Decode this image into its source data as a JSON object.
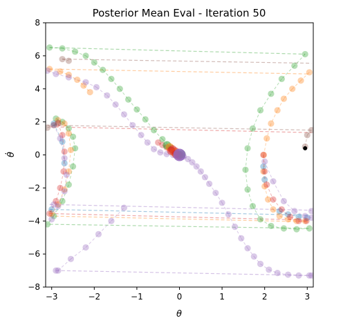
{
  "chart_data": {
    "type": "scatter",
    "title": "Posterior Mean Eval - Iteration 50",
    "xlabel": "θ",
    "ylabel": "θ̇",
    "xlim": [
      -3.14159,
      3.14159
    ],
    "ylim": [
      -8,
      8
    ],
    "xticks": [
      -3,
      -2,
      -1,
      0,
      1,
      2,
      3
    ],
    "yticks": [
      -8,
      -6,
      -4,
      -2,
      0,
      2,
      4,
      6,
      8
    ],
    "grid": false,
    "colors": {
      "blue": "#1f77b4",
      "orange": "#ff7f0e",
      "green": "#2ca02c",
      "red": "#d62728",
      "purple": "#9467bd",
      "brown": "#8c564b",
      "black": "#000000"
    },
    "series": [
      {
        "color": "green",
        "x": [
          -3.05,
          -2.75,
          -2.45,
          -2.2,
          -2.0,
          -1.8,
          -1.6,
          -1.4,
          -1.2,
          -1.0,
          -0.8,
          -0.6,
          -0.4,
          -0.2,
          0.0,
          -2.9,
          -2.75,
          -2.6,
          -2.5,
          -2.45,
          -2.5,
          -2.6,
          -2.75,
          -2.95,
          -3.1,
          2.95,
          2.7,
          2.4,
          2.15,
          1.9,
          1.72,
          1.6,
          1.55,
          1.6,
          1.72,
          1.9,
          2.15,
          2.45,
          2.75,
          3.05
        ],
        "y": [
          6.5,
          6.45,
          6.25,
          6.0,
          5.6,
          5.15,
          4.6,
          4.0,
          3.35,
          2.75,
          2.15,
          1.5,
          0.95,
          0.45,
          0.05,
          2.2,
          2.0,
          1.6,
          1.1,
          0.4,
          -0.7,
          -1.8,
          -2.8,
          -3.7,
          -4.2,
          6.1,
          5.4,
          4.6,
          3.7,
          2.7,
          1.6,
          0.4,
          -0.9,
          -2.1,
          -3.1,
          -3.9,
          -4.3,
          -4.45,
          -4.5,
          -4.45
        ]
      },
      {
        "color": "orange",
        "x": [
          -3.05,
          -2.8,
          -2.6,
          -2.4,
          -2.25,
          -2.1,
          -2.85,
          -2.7,
          -2.6,
          -2.55,
          -2.6,
          -2.7,
          -2.85,
          -3.0,
          3.05,
          2.85,
          2.65,
          2.45,
          2.3,
          2.15,
          2.05,
          1.98,
          1.97,
          2.0,
          2.08,
          2.2,
          2.35,
          2.55,
          2.75,
          2.95
        ],
        "y": [
          5.2,
          5.05,
          4.85,
          4.55,
          4.2,
          3.8,
          2.1,
          1.9,
          1.3,
          0.3,
          -1.0,
          -2.1,
          -3.0,
          -3.55,
          5.0,
          4.5,
          4.0,
          3.4,
          2.7,
          1.9,
          1.0,
          0.0,
          -1.0,
          -1.9,
          -2.7,
          -3.3,
          -3.7,
          -3.9,
          -4.0,
          -4.0
        ]
      },
      {
        "color": "blue",
        "x": [
          -2.95,
          -2.75,
          -2.7,
          -3.0,
          1.97,
          2.0,
          2.35,
          2.55,
          2.8,
          3.0
        ],
        "y": [
          1.9,
          0.8,
          -0.5,
          -3.3,
          -0.7,
          -1.5,
          -3.4,
          -3.6,
          -3.75,
          -3.8
        ]
      },
      {
        "color": "red",
        "x": [
          -2.85,
          -2.75,
          -2.7,
          -2.72,
          -2.8,
          -2.9,
          -3.05,
          1.97,
          2.0,
          2.05,
          2.2,
          2.4,
          2.6,
          2.8,
          2.98,
          -0.5,
          -0.4,
          -0.3,
          -0.2,
          -0.1,
          0.0,
          0.05
        ],
        "y": [
          1.9,
          1.2,
          0.2,
          -1.0,
          -2.0,
          -2.8,
          -3.55,
          0.0,
          -1.0,
          -1.8,
          -2.7,
          -3.3,
          -3.75,
          -4.0,
          -4.0,
          0.75,
          0.6,
          0.45,
          0.3,
          0.15,
          0.05,
          0.0
        ]
      },
      {
        "color": "purple",
        "x": [
          -3.1,
          -2.9,
          -2.6,
          -2.2,
          -1.95,
          -1.7,
          -1.5,
          -1.3,
          -1.1,
          -0.9,
          -0.75,
          -0.6,
          -0.45,
          -0.3,
          -0.15,
          0.0,
          0.1,
          0.2,
          0.3,
          0.4,
          0.5,
          0.6,
          0.7,
          0.85,
          1.0,
          1.15,
          1.3,
          1.45,
          1.6,
          1.75,
          1.9,
          2.1,
          2.3,
          2.55,
          2.8,
          3.05,
          -2.95,
          -2.8,
          -2.7,
          -2.65,
          -2.7,
          -2.85,
          -3.0,
          -2.85,
          -2.55,
          -2.2,
          -1.9,
          -1.6,
          -1.3,
          2.0,
          2.2,
          2.45,
          2.7,
          2.95,
          3.1,
          -2.95,
          3.1,
          -2.9,
          3.1
        ],
        "y": [
          5.1,
          4.9,
          4.7,
          4.4,
          4.1,
          3.6,
          3.05,
          2.45,
          1.8,
          1.2,
          0.75,
          0.35,
          0.15,
          0.05,
          0.0,
          0.0,
          -0.1,
          -0.25,
          -0.45,
          -0.7,
          -1.0,
          -1.35,
          -1.75,
          -2.3,
          -2.9,
          -3.6,
          -4.35,
          -5.05,
          -5.65,
          -6.15,
          -6.6,
          -6.95,
          -7.15,
          -7.25,
          -7.3,
          -7.3,
          1.8,
          1.0,
          -0.2,
          -1.2,
          -2.2,
          -3.1,
          -3.9,
          -7.0,
          -6.3,
          -5.6,
          -4.8,
          -4.0,
          -3.2,
          -0.4,
          -1.6,
          -2.8,
          -3.4,
          -3.7,
          -3.8,
          -3.0,
          -3.4,
          -7.0,
          -7.3
        ]
      },
      {
        "color": "brown",
        "x": [
          -3.1,
          -2.95,
          -2.85,
          2.95,
          3.0,
          3.1,
          -2.75,
          -2.6
        ],
        "y": [
          1.65,
          1.8,
          1.95,
          0.5,
          1.2,
          1.5,
          5.8,
          5.7
        ]
      },
      {
        "color": "black",
        "x": [
          2.95
        ],
        "y": [
          0.4
        ]
      }
    ],
    "dashed_lines": [
      {
        "color": "green",
        "x": [
          -3.05,
          2.95
        ],
        "y": [
          6.5,
          6.1
        ]
      },
      {
        "color": "orange",
        "x": [
          -3.05,
          3.05
        ],
        "y": [
          5.2,
          4.9
        ]
      },
      {
        "color": "brown",
        "x": [
          -2.75,
          3.1
        ],
        "y": [
          5.8,
          5.55
        ]
      },
      {
        "color": "brown",
        "x": [
          -3.1,
          3.1
        ],
        "y": [
          1.8,
          1.5
        ]
      },
      {
        "color": "red",
        "x": [
          -3.05,
          3.1
        ],
        "y": [
          1.7,
          1.35
        ]
      },
      {
        "color": "blue",
        "x": [
          -3.05,
          3.05
        ],
        "y": [
          -3.3,
          -3.65
        ]
      },
      {
        "color": "red",
        "x": [
          -3.05,
          3.05
        ],
        "y": [
          -3.55,
          -3.95
        ]
      },
      {
        "color": "orange",
        "x": [
          -3.05,
          3.05
        ],
        "y": [
          -3.7,
          -4.05
        ]
      },
      {
        "color": "green",
        "x": [
          -3.05,
          3.05
        ],
        "y": [
          -4.2,
          -4.45
        ]
      },
      {
        "color": "purple",
        "x": [
          -3.05,
          3.1
        ],
        "y": [
          -3.0,
          -3.35
        ]
      },
      {
        "color": "purple",
        "x": [
          -2.9,
          3.1
        ],
        "y": [
          -7.0,
          -7.3
        ]
      }
    ],
    "cluster": {
      "x": 0.0,
      "y": 0.0
    }
  }
}
